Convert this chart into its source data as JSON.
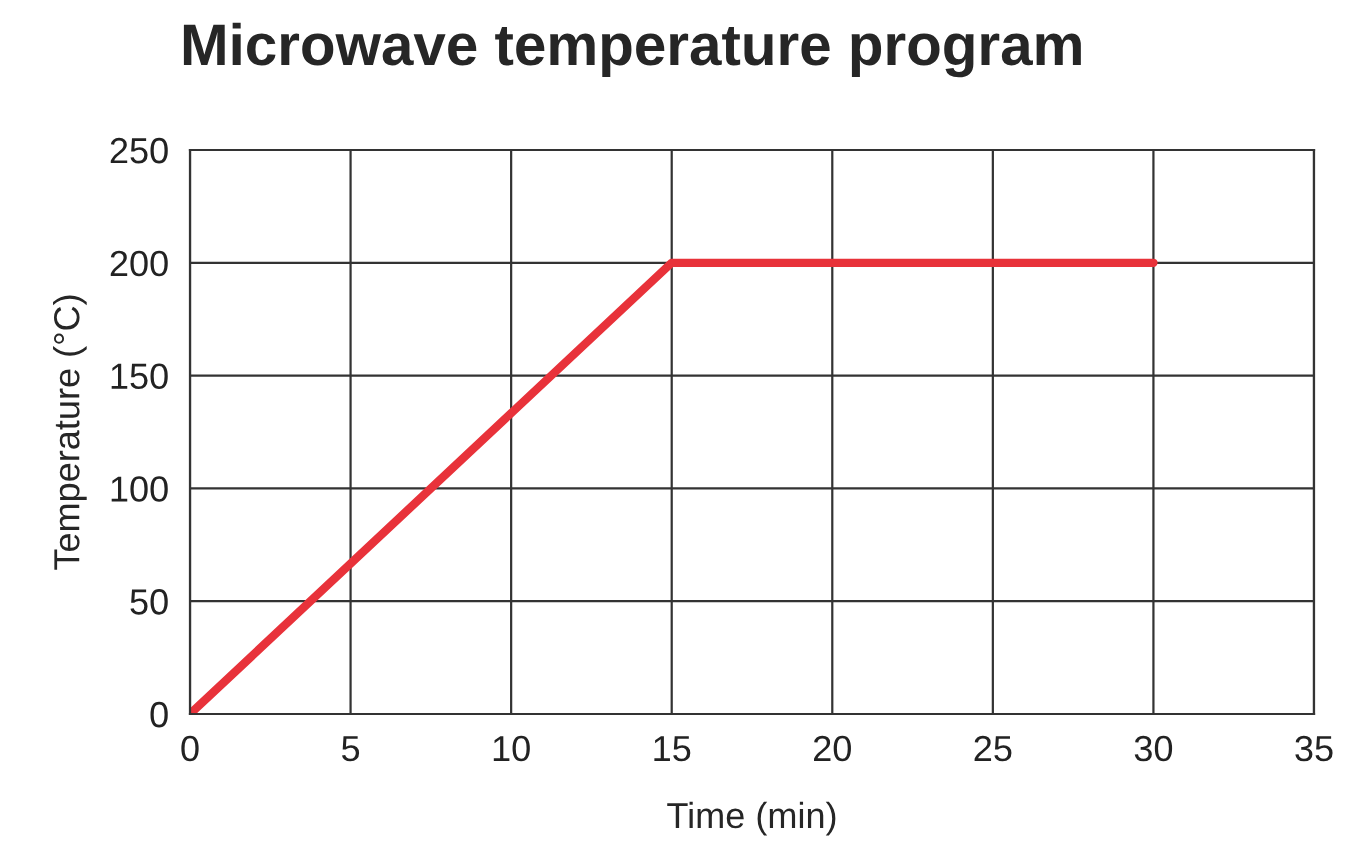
{
  "chart_data": {
    "type": "line",
    "title": "Microwave temperature program",
    "xlabel": "Time (min)",
    "ylabel": "Temperature (°C)",
    "x": [
      0,
      15,
      30
    ],
    "series": [
      {
        "color": "#e8323a",
        "values": [
          0,
          200,
          200
        ]
      }
    ],
    "xlim": [
      0,
      35
    ],
    "xticks": [
      0,
      5,
      10,
      15,
      20,
      25,
      30,
      35
    ],
    "ylim": [
      0,
      250
    ],
    "yticks": [
      0,
      50,
      100,
      150,
      200,
      250
    ],
    "grid": true,
    "marker": "none",
    "line_style": "solid"
  }
}
